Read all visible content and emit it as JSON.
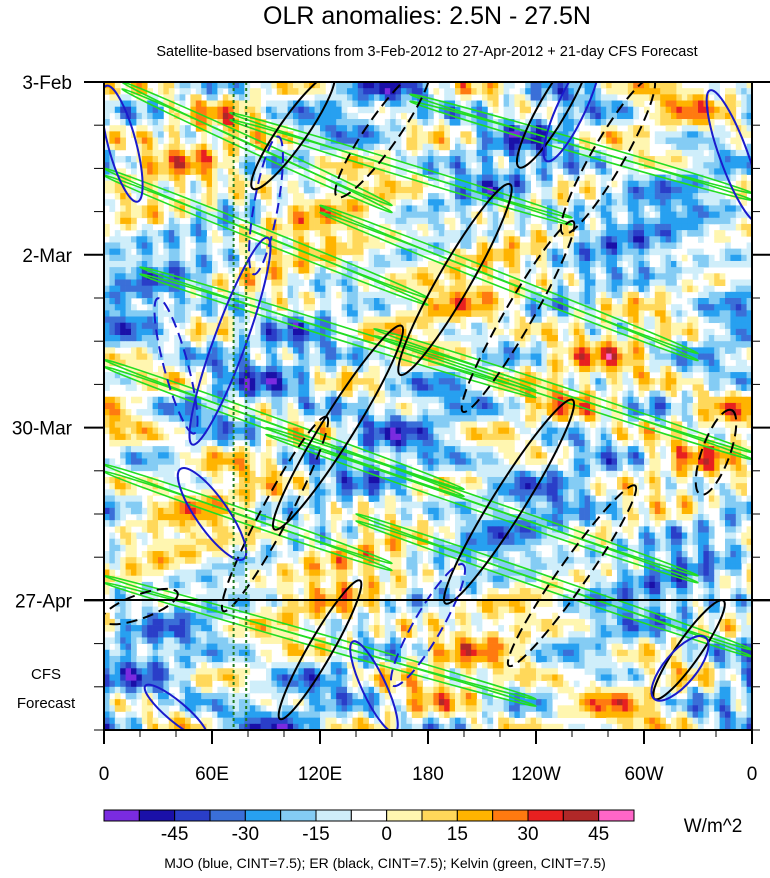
{
  "chart_data": {
    "type": "heatmap",
    "title": "OLR anomalies: 2.5N - 27.5N",
    "subtitle": "Satellite-based bservations from 3-Feb-2012 to 27-Apr-2012 + 21-day CFS Forecast",
    "x_ticks": [
      "0",
      "60E",
      "120E",
      "180",
      "120W",
      "60W",
      "0"
    ],
    "x_tick_degrees": [
      0,
      60,
      120,
      180,
      240,
      300,
      360
    ],
    "y_ticks": [
      "3-Feb",
      "2-Mar",
      "30-Mar",
      "27-Apr"
    ],
    "y_tick_days": [
      0,
      28,
      56,
      84
    ],
    "y_range_days": [
      0,
      105
    ],
    "x_range_degrees": [
      0,
      360
    ],
    "forecast_label_line1": "CFS",
    "forecast_label_line2": "Forecast",
    "forecast_start_day": 84,
    "reference_lines_degrees": [
      72,
      79
    ],
    "colorbar": {
      "unit": "W/m^2",
      "labels": [
        "-45",
        "-30",
        "-15",
        "0",
        "15",
        "30",
        "45"
      ],
      "levels": [
        -52.5,
        -45,
        -37.5,
        -30,
        -22.5,
        -15,
        -7.5,
        0,
        7.5,
        15,
        22.5,
        30,
        37.5,
        45,
        52.5
      ],
      "colors": [
        "#7a2be0",
        "#1a10a8",
        "#2a3ec8",
        "#3a6fd8",
        "#27a0f0",
        "#84ccf4",
        "#cfeefa",
        "#ffffff",
        "#fff6b0",
        "#ffd85a",
        "#ffb400",
        "#ff7a10",
        "#e82020",
        "#b02828",
        "#ff66c8"
      ]
    },
    "contours": {
      "mjo_color": "#1a1acc",
      "er_color": "#000000",
      "kelvin_color": "#22dd22"
    },
    "footer": "MJO (blue, CINT=7.5); ER (black, CINT=7.5); Kelvin (green, CINT=7.5)"
  }
}
